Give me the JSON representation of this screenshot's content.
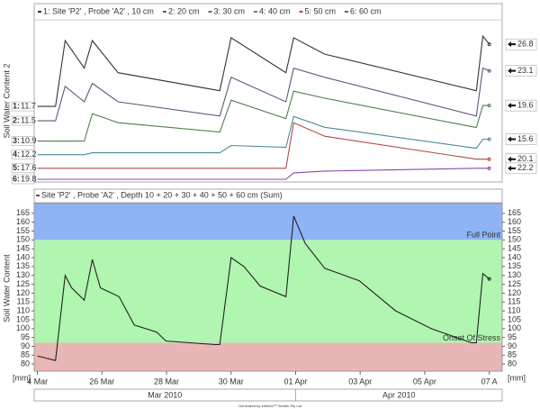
{
  "chart_data": [
    {
      "type": "line",
      "ylabel": "Soil Water Content 2",
      "x": [
        0,
        0.56,
        0.86,
        1.45,
        1.7,
        2.5,
        5.65,
        6.0,
        7.7,
        7.94,
        8.9,
        13.6,
        13.8,
        14.0
      ],
      "xlim": [
        -0.1,
        14.4
      ],
      "series": [
        {
          "name": "1: Site 'P2' , Probe 'A2' , 10 cm",
          "key": "1:",
          "color": "#333333",
          "ylim": [
            -6.7,
            32.1
          ],
          "values": [
            11.7,
            11.7,
            27.7,
            21.0,
            27.7,
            19.9,
            15.5,
            28.4,
            19.9,
            28.4,
            24.4,
            15.5,
            28.8,
            26.8
          ]
        },
        {
          "name": "2: 20 cm",
          "key": "2:",
          "color": "#5a5a7a",
          "ylim": [
            -2.7,
            34.3
          ],
          "values": [
            11.5,
            11.5,
            19.5,
            15.9,
            20.2,
            15.9,
            12.6,
            21.6,
            15.9,
            23.7,
            21.6,
            12.6,
            23.7,
            23.1
          ]
        },
        {
          "name": "3: 30 cm",
          "key": "3:",
          "color": "#4f7f4f",
          "ylim": [
            0.9,
            39.9
          ],
          "values": [
            10.9,
            10.9,
            10.9,
            10.9,
            17.6,
            15.4,
            13.1,
            20.9,
            16.4,
            23.1,
            21.4,
            14.2,
            19.6,
            19.6
          ]
        },
        {
          "name": "4: 40 cm",
          "key": "4:",
          "color": "#4a8a9a",
          "ylim": [
            6.2,
            41.2
          ],
          "values": [
            12.2,
            12.2,
            12.2,
            12.2,
            12.6,
            12.6,
            12.6,
            14.2,
            13.8,
            20.6,
            18.2,
            13.6,
            15.6,
            15.6
          ]
        },
        {
          "name": "5: 50 cm",
          "key": "5:",
          "color": "#b04848",
          "ylim": [
            13.85,
            57.6
          ],
          "values": [
            17.6,
            17.6,
            17.6,
            17.6,
            17.6,
            17.6,
            17.6,
            17.6,
            17.6,
            30.1,
            26.4,
            20.1,
            20.1,
            20.1
          ]
        },
        {
          "name": "6: 60 cm",
          "key": "6:",
          "color": "#8a4aaa",
          "ylim": [
            19.2,
            54.2
          ],
          "values": [
            19.8,
            19.8,
            19.8,
            19.8,
            19.8,
            19.8,
            19.8,
            19.8,
            19.8,
            21.2,
            21.6,
            22.2,
            22.2,
            22.2
          ]
        }
      ]
    },
    {
      "type": "line",
      "ylabel": "Soil Water Content",
      "unit": "[mm]",
      "x": [
        0,
        0.56,
        0.86,
        1.06,
        1.45,
        1.7,
        1.95,
        2.53,
        3.0,
        3.7,
        3.98,
        5.5,
        5.65,
        6.0,
        6.4,
        6.9,
        7.7,
        7.94,
        8.3,
        8.9,
        9.97,
        11.1,
        12.2,
        13.45,
        13.6,
        13.8,
        14.0
      ],
      "series": [
        {
          "name": "Site 'P2' , Probe 'A2' , Depth 10 + 20 + 30 + 40 + 50 + 60 cm (Sum)",
          "color": "#222222",
          "values": [
            84.6,
            82,
            130,
            123,
            116,
            139,
            123,
            118,
            102,
            98,
            93,
            91,
            91,
            140,
            135,
            124,
            118,
            163.5,
            148,
            134,
            127,
            110,
            100,
            92,
            92,
            131,
            128
          ]
        }
      ],
      "xlim": [
        -0.1,
        14.4
      ],
      "xticks": [
        {
          "value": 0,
          "label": "4 Mar"
        },
        {
          "value": 2,
          "label": "26 Mar"
        },
        {
          "value": 4,
          "label": "28 Mar"
        },
        {
          "value": 6,
          "label": "30 Mar"
        },
        {
          "value": 8,
          "label": "01 Apr"
        },
        {
          "value": 10,
          "label": "03 Apr"
        },
        {
          "value": 12,
          "label": "05 Apr"
        },
        {
          "value": 14,
          "label": "07 A"
        }
      ],
      "ylim": [
        76,
        170.5
      ],
      "yticks": [
        80,
        85,
        90,
        95,
        100,
        105,
        110,
        115,
        120,
        125,
        130,
        135,
        140,
        145,
        150,
        155,
        160,
        165
      ],
      "full_point": {
        "value": 150,
        "label": "Full Point",
        "color": "#8fb4f5"
      },
      "stress_point": {
        "value": 92,
        "label": "Onset Of Stress",
        "color": "#b0f5b0"
      },
      "dry_color": "#e9b6b6",
      "x_groups": [
        {
          "label": "Mar 2010",
          "end": 8
        },
        {
          "label": "Apr 2010",
          "start": 8
        }
      ]
    }
  ],
  "footer": "Generated by IrriMAX™ Sentek Pty Ltd"
}
